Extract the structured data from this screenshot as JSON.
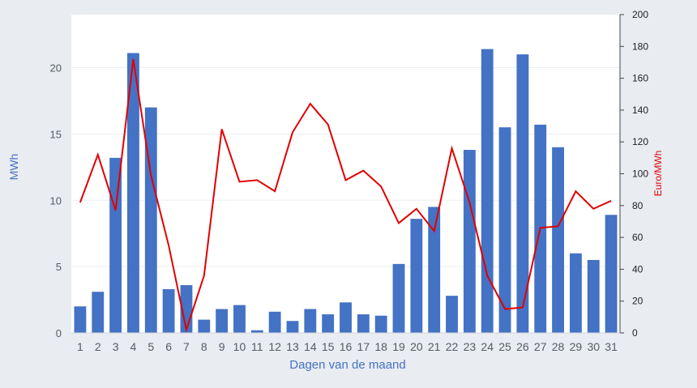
{
  "chart_data": {
    "type": "bar",
    "title": "",
    "xlabel": "Dagen van de maand",
    "ylabel": "MWh",
    "y2label": "Euro/MWh",
    "categories": [
      "1",
      "2",
      "3",
      "4",
      "5",
      "6",
      "7",
      "8",
      "9",
      "10",
      "11",
      "12",
      "13",
      "14",
      "15",
      "16",
      "17",
      "18",
      "19",
      "20",
      "21",
      "22",
      "23",
      "24",
      "25",
      "26",
      "27",
      "28",
      "29",
      "30",
      "31"
    ],
    "ylim": [
      0,
      24
    ],
    "y_ticks": [
      0,
      5,
      10,
      15,
      20
    ],
    "y2lim": [
      0,
      200
    ],
    "y2_ticks": [
      0,
      20,
      40,
      60,
      80,
      100,
      120,
      140,
      160,
      180,
      200
    ],
    "series": [
      {
        "type": "bar",
        "axis": "left",
        "color": "#4472c4",
        "values": [
          2.0,
          3.1,
          13.2,
          21.1,
          17.0,
          3.3,
          3.6,
          1.0,
          1.8,
          2.1,
          0.2,
          1.6,
          0.9,
          1.8,
          1.4,
          2.3,
          1.4,
          1.3,
          5.2,
          8.6,
          9.5,
          2.8,
          13.8,
          21.4,
          15.5,
          21.0,
          15.7,
          14.0,
          6.0,
          5.5,
          8.9
        ]
      },
      {
        "type": "line",
        "axis": "right",
        "color": "#e00000",
        "values": [
          82,
          112,
          77,
          172,
          99,
          55,
          2,
          36,
          128,
          95,
          96,
          89,
          126,
          144,
          131,
          96,
          102,
          92,
          69,
          78,
          64,
          116,
          82,
          36,
          15,
          16,
          66,
          67,
          89,
          78,
          83
        ]
      }
    ],
    "grid": true,
    "legend": "none"
  }
}
